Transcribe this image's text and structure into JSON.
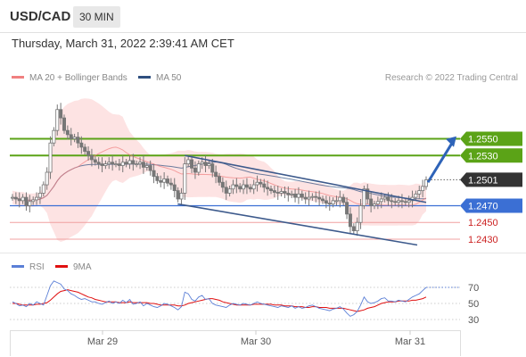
{
  "header": {
    "symbol": "USD/CAD",
    "timeframe": "30 MIN"
  },
  "subheader": {
    "datetime": "Thursday, March 31, 2022 2:39:41 AM CET"
  },
  "legend": {
    "ma20_bb": "MA 20 + Bollinger Bands",
    "ma50": "MA 50",
    "credit": "Research © 2022 Trading Central",
    "rsi": "RSI",
    "ma9": "9MA"
  },
  "colors": {
    "candle": "#777777",
    "bollinger_fill": "#fde3e3",
    "ma20": "#f08080",
    "ma50": "#2f4f7f",
    "resistance": "#5ba317",
    "support": "#3b6fd4",
    "minor_level": "#f0a0a0",
    "channel": "#3d5a8c",
    "arrow": "#2e63b8",
    "current": "#333333",
    "rsi": "#5b7fd6",
    "rsi_ma": "#e01010"
  },
  "chart_data": [
    {
      "type": "candlestick",
      "title": "USD/CAD 30 MIN",
      "x_ticks": [
        "Mar 29",
        "Mar 30",
        "Mar 31"
      ],
      "ylim": [
        1.2415,
        1.2605
      ],
      "current_price": "1.2501",
      "levels": [
        {
          "value": 1.255,
          "label": "1.2550",
          "kind": "resistance"
        },
        {
          "value": 1.253,
          "label": "1.2530",
          "kind": "resistance"
        },
        {
          "value": 1.247,
          "label": "1.2470",
          "kind": "support"
        },
        {
          "value": 1.245,
          "label": "1.2450",
          "kind": "minor"
        },
        {
          "value": 1.243,
          "label": "1.2430",
          "kind": "minor"
        }
      ],
      "close": [
        1.248,
        1.2478,
        1.2476,
        1.248,
        1.247,
        1.2475,
        1.2477,
        1.248,
        1.2485,
        1.2495,
        1.251,
        1.2545,
        1.256,
        1.2585,
        1.2575,
        1.256,
        1.2555,
        1.255,
        1.2552,
        1.2545,
        1.254,
        1.2535,
        1.253,
        1.2525,
        1.2522,
        1.252,
        1.2518,
        1.252,
        1.2522,
        1.252,
        1.252,
        1.2518,
        1.2522,
        1.252,
        1.2524,
        1.252,
        1.252,
        1.2522,
        1.2516,
        1.2518,
        1.2512,
        1.2505,
        1.25,
        1.2498,
        1.2502,
        1.2497,
        1.2495,
        1.2488,
        1.2478,
        1.2485,
        1.252,
        1.2525,
        1.2515,
        1.251,
        1.252,
        1.2522,
        1.2518,
        1.252,
        1.251,
        1.2505,
        1.2498,
        1.2492,
        1.2485,
        1.249,
        1.2495,
        1.2493,
        1.249,
        1.2495,
        1.2492,
        1.249,
        1.2495,
        1.2498,
        1.2496,
        1.2492,
        1.249,
        1.2488,
        1.2486,
        1.2485,
        1.2487,
        1.2485,
        1.2483,
        1.2484,
        1.248,
        1.2484,
        1.248,
        1.2478,
        1.248,
        1.2481,
        1.248,
        1.2478,
        1.2476,
        1.2473,
        1.2472,
        1.2476,
        1.2476,
        1.248,
        1.2474,
        1.246,
        1.2445,
        1.244,
        1.245,
        1.247,
        1.249,
        1.2478,
        1.247,
        1.2472,
        1.2475,
        1.2478,
        1.248,
        1.2476,
        1.2475,
        1.2474,
        1.2476,
        1.2475,
        1.2474,
        1.2476,
        1.248,
        1.2484,
        1.2488,
        1.2493,
        1.2501
      ],
      "rsi": {
        "ylim": [
          20,
          80
        ],
        "ticks": [
          70,
          50,
          30
        ],
        "values": [
          52,
          50,
          47,
          48,
          46,
          50,
          48,
          52,
          50,
          48,
          60,
          72,
          78,
          76,
          74,
          68,
          66,
          62,
          60,
          57,
          55,
          56,
          54,
          52,
          52,
          50,
          49,
          51,
          53,
          50,
          52,
          50,
          54,
          51,
          55,
          49,
          50,
          52,
          47,
          50,
          48,
          46,
          45,
          47,
          50,
          49,
          47,
          45,
          42,
          46,
          64,
          62,
          55,
          53,
          58,
          60,
          55,
          56,
          50,
          48,
          47,
          46,
          45,
          48,
          50,
          49,
          48,
          50,
          49,
          48,
          50,
          52,
          50,
          49,
          48,
          47,
          46,
          45,
          47,
          46,
          45,
          47,
          44,
          46,
          44,
          45,
          47,
          48,
          46,
          44,
          43,
          42,
          41,
          43,
          44,
          46,
          43,
          38,
          34,
          36,
          40,
          48,
          58,
          52,
          50,
          51,
          53,
          56,
          57,
          53,
          53,
          52,
          54,
          53,
          52,
          55,
          58,
          60,
          62,
          66,
          70
        ],
        "ma9": [
          50,
          50,
          49,
          48,
          48,
          48,
          48,
          49,
          49,
          50,
          51,
          54,
          58,
          62,
          65,
          66,
          67,
          66,
          65,
          64,
          62,
          60,
          58,
          57,
          55,
          54,
          53,
          52,
          52,
          52,
          52,
          51,
          51,
          51,
          52,
          51,
          51,
          51,
          51,
          51,
          50,
          50,
          49,
          48,
          48,
          48,
          48,
          48,
          47,
          47,
          48,
          50,
          51,
          52,
          53,
          54,
          55,
          56,
          56,
          55,
          54,
          52,
          51,
          50,
          49,
          48,
          48,
          48,
          48,
          48,
          49,
          49,
          49,
          49,
          49,
          49,
          48,
          48,
          48,
          47,
          47,
          47,
          46,
          46,
          46,
          45,
          45,
          46,
          46,
          45,
          45,
          45,
          44,
          44,
          44,
          44,
          44,
          43,
          42,
          41,
          40,
          41,
          42,
          44,
          45,
          46,
          48,
          50,
          51,
          52,
          52,
          52,
          53,
          53,
          53,
          53,
          54,
          54,
          55,
          56,
          58
        ]
      }
    }
  ]
}
